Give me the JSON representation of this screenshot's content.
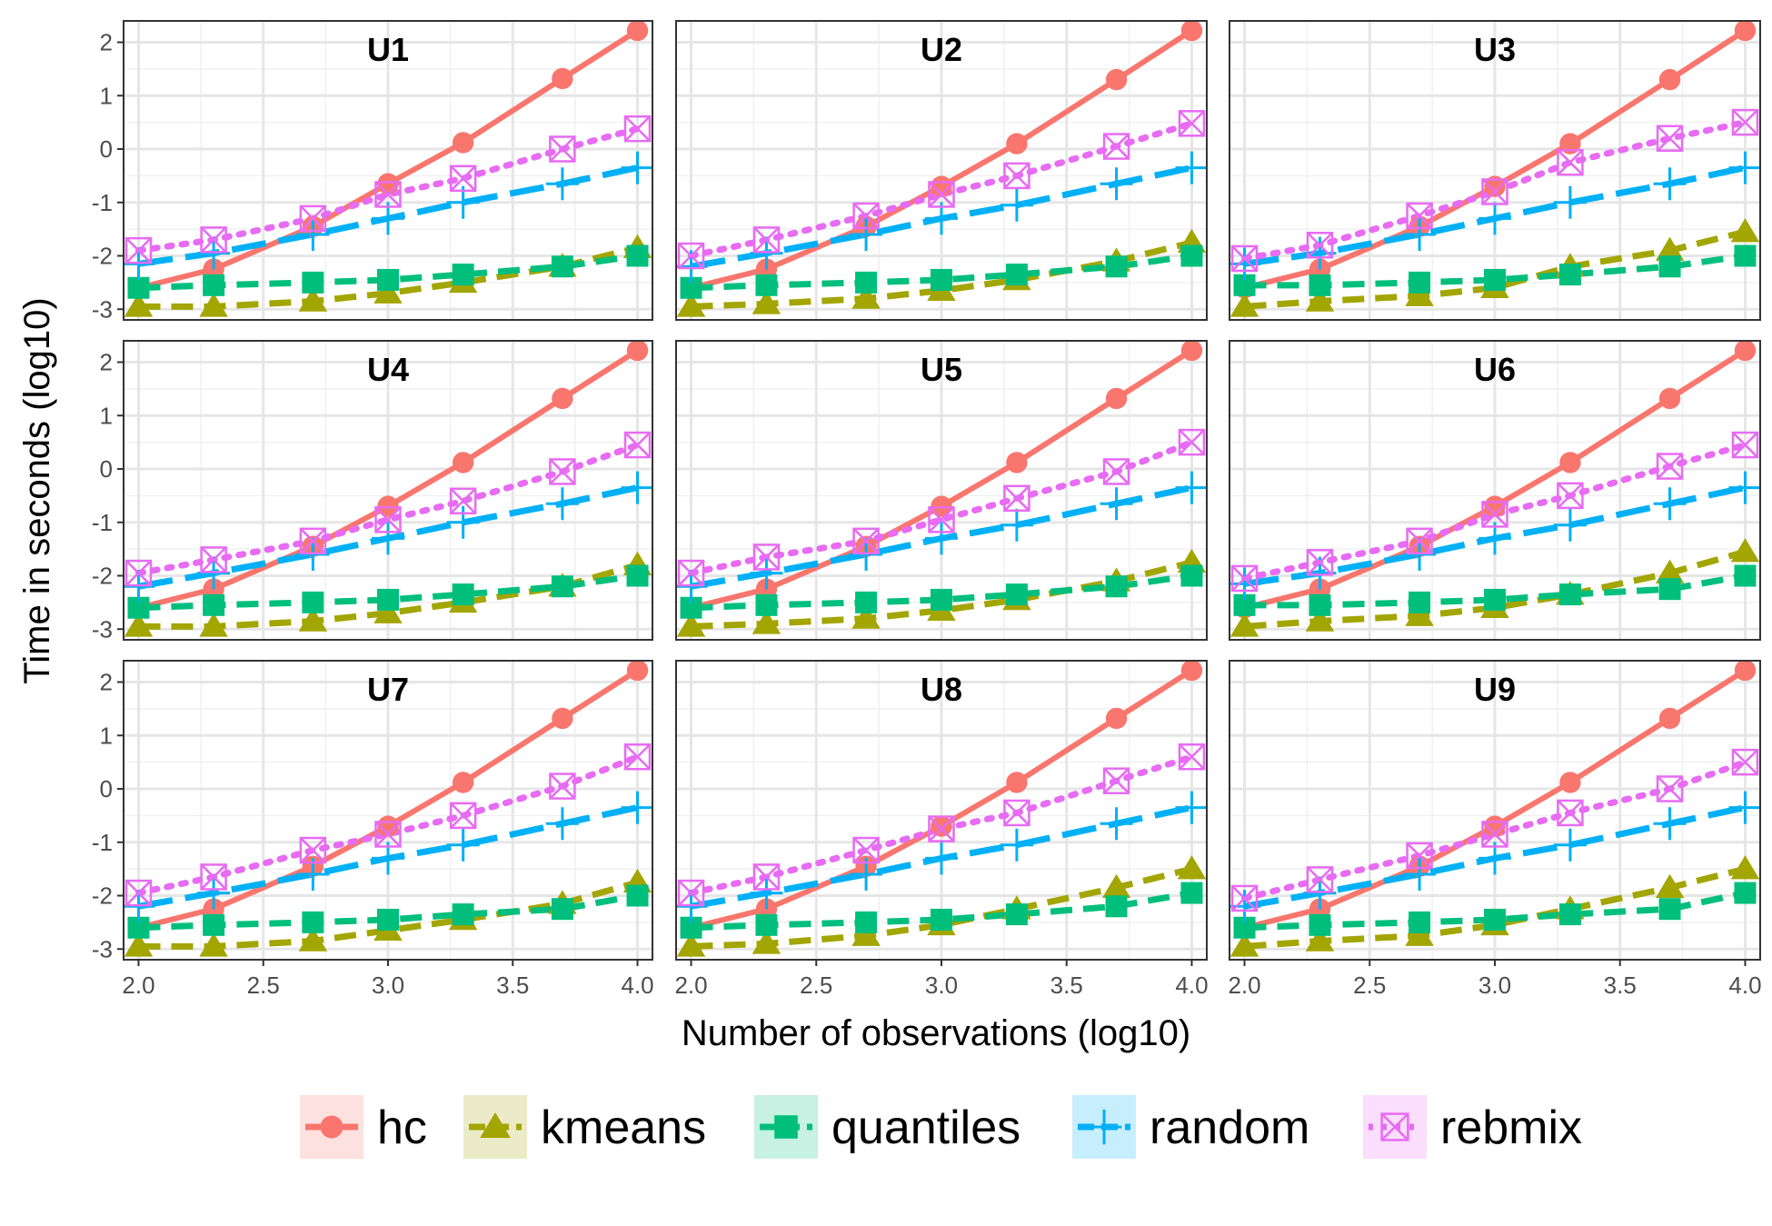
{
  "chart_data": {
    "type": "line",
    "xlabel": "Number of observations (log10)",
    "ylabel": "Time in seconds (log10)",
    "xlim": [
      1.94,
      4.06
    ],
    "ylim": [
      -3.2,
      2.4
    ],
    "x_ticks": [
      2.0,
      2.5,
      3.0,
      3.5,
      4.0
    ],
    "x_tick_labels": [
      "2.0",
      "2.5",
      "3.0",
      "3.5",
      "4.0"
    ],
    "y_ticks": [
      -3,
      -2,
      -1,
      0,
      1,
      2
    ],
    "y_tick_labels": [
      "-3",
      "-2",
      "-1",
      "0",
      "1",
      "2"
    ],
    "grid": true,
    "legend_position": "bottom",
    "x": [
      2.0,
      2.301,
      2.699,
      3.0,
      3.301,
      3.699,
      4.0
    ],
    "series_styles": [
      {
        "name": "hc",
        "color": "#F8766D",
        "dash": "solid",
        "marker": "circle"
      },
      {
        "name": "kmeans",
        "color": "#A3A500",
        "dash": "dashed",
        "marker": "triangle"
      },
      {
        "name": "quantiles",
        "color": "#00BF7D",
        "dash": "dashed",
        "marker": "square"
      },
      {
        "name": "random",
        "color": "#00B0F6",
        "dash": "longdash",
        "marker": "plus"
      },
      {
        "name": "rebmix",
        "color": "#E76BF3",
        "dash": "dotted",
        "marker": "boxx"
      }
    ],
    "panels": [
      {
        "label": "U1",
        "series": [
          {
            "name": "hc",
            "values": [
              -2.6,
              -2.25,
              -1.45,
              -0.65,
              0.12,
              1.32,
              2.22
            ]
          },
          {
            "name": "kmeans",
            "values": [
              -2.95,
              -2.95,
              -2.85,
              -2.7,
              -2.5,
              -2.2,
              -1.85
            ]
          },
          {
            "name": "quantiles",
            "values": [
              -2.6,
              -2.55,
              -2.5,
              -2.45,
              -2.35,
              -2.2,
              -2.0
            ]
          },
          {
            "name": "random",
            "values": [
              -2.15,
              -1.95,
              -1.6,
              -1.3,
              -1.0,
              -0.65,
              -0.35
            ]
          },
          {
            "name": "rebmix",
            "values": [
              -1.9,
              -1.7,
              -1.3,
              -0.85,
              -0.55,
              0.0,
              0.38
            ]
          }
        ]
      },
      {
        "label": "U2",
        "series": [
          {
            "name": "hc",
            "values": [
              -2.6,
              -2.25,
              -1.45,
              -0.7,
              0.1,
              1.3,
              2.22
            ]
          },
          {
            "name": "kmeans",
            "values": [
              -2.95,
              -2.9,
              -2.8,
              -2.65,
              -2.45,
              -2.1,
              -1.75
            ]
          },
          {
            "name": "quantiles",
            "values": [
              -2.6,
              -2.55,
              -2.5,
              -2.45,
              -2.35,
              -2.2,
              -2.0
            ]
          },
          {
            "name": "random",
            "values": [
              -2.2,
              -1.95,
              -1.6,
              -1.3,
              -1.05,
              -0.65,
              -0.35
            ]
          },
          {
            "name": "rebmix",
            "values": [
              -2.0,
              -1.7,
              -1.25,
              -0.85,
              -0.5,
              0.05,
              0.48
            ]
          }
        ]
      },
      {
        "label": "U3",
        "series": [
          {
            "name": "hc",
            "values": [
              -2.6,
              -2.25,
              -1.45,
              -0.7,
              0.1,
              1.3,
              2.22
            ]
          },
          {
            "name": "kmeans",
            "values": [
              -2.95,
              -2.85,
              -2.75,
              -2.6,
              -2.2,
              -1.9,
              -1.55
            ]
          },
          {
            "name": "quantiles",
            "values": [
              -2.55,
              -2.55,
              -2.5,
              -2.45,
              -2.35,
              -2.2,
              -2.0
            ]
          },
          {
            "name": "random",
            "values": [
              -2.15,
              -1.95,
              -1.6,
              -1.3,
              -1.0,
              -0.65,
              -0.35
            ]
          },
          {
            "name": "rebmix",
            "values": [
              -2.05,
              -1.8,
              -1.25,
              -0.8,
              -0.25,
              0.2,
              0.5
            ]
          }
        ]
      },
      {
        "label": "U4",
        "series": [
          {
            "name": "hc",
            "values": [
              -2.6,
              -2.25,
              -1.45,
              -0.7,
              0.12,
              1.32,
              2.22
            ]
          },
          {
            "name": "kmeans",
            "values": [
              -2.95,
              -2.95,
              -2.85,
              -2.7,
              -2.5,
              -2.2,
              -1.8
            ]
          },
          {
            "name": "quantiles",
            "values": [
              -2.6,
              -2.55,
              -2.5,
              -2.45,
              -2.35,
              -2.2,
              -2.0
            ]
          },
          {
            "name": "random",
            "values": [
              -2.2,
              -1.95,
              -1.6,
              -1.3,
              -1.0,
              -0.65,
              -0.35
            ]
          },
          {
            "name": "rebmix",
            "values": [
              -1.95,
              -1.7,
              -1.35,
              -0.95,
              -0.6,
              -0.05,
              0.45
            ]
          }
        ]
      },
      {
        "label": "U5",
        "series": [
          {
            "name": "hc",
            "values": [
              -2.6,
              -2.25,
              -1.45,
              -0.7,
              0.12,
              1.32,
              2.22
            ]
          },
          {
            "name": "kmeans",
            "values": [
              -2.95,
              -2.9,
              -2.8,
              -2.65,
              -2.45,
              -2.1,
              -1.75
            ]
          },
          {
            "name": "quantiles",
            "values": [
              -2.6,
              -2.55,
              -2.5,
              -2.45,
              -2.35,
              -2.2,
              -2.0
            ]
          },
          {
            "name": "random",
            "values": [
              -2.2,
              -1.95,
              -1.6,
              -1.3,
              -1.05,
              -0.65,
              -0.35
            ]
          },
          {
            "name": "rebmix",
            "values": [
              -1.95,
              -1.65,
              -1.35,
              -0.95,
              -0.55,
              -0.05,
              0.5
            ]
          }
        ]
      },
      {
        "label": "U6",
        "series": [
          {
            "name": "hc",
            "values": [
              -2.6,
              -2.25,
              -1.45,
              -0.7,
              0.12,
              1.32,
              2.22
            ]
          },
          {
            "name": "kmeans",
            "values": [
              -2.95,
              -2.85,
              -2.75,
              -2.6,
              -2.35,
              -1.95,
              -1.55
            ]
          },
          {
            "name": "quantiles",
            "values": [
              -2.55,
              -2.55,
              -2.5,
              -2.45,
              -2.35,
              -2.25,
              -2.0
            ]
          },
          {
            "name": "random",
            "values": [
              -2.15,
              -1.95,
              -1.6,
              -1.3,
              -1.05,
              -0.65,
              -0.35
            ]
          },
          {
            "name": "rebmix",
            "values": [
              -2.05,
              -1.75,
              -1.35,
              -0.85,
              -0.5,
              0.05,
              0.45
            ]
          }
        ]
      },
      {
        "label": "U7",
        "series": [
          {
            "name": "hc",
            "values": [
              -2.6,
              -2.25,
              -1.45,
              -0.7,
              0.12,
              1.32,
              2.22
            ]
          },
          {
            "name": "kmeans",
            "values": [
              -2.95,
              -2.95,
              -2.85,
              -2.65,
              -2.45,
              -2.15,
              -1.75
            ]
          },
          {
            "name": "quantiles",
            "values": [
              -2.6,
              -2.55,
              -2.5,
              -2.45,
              -2.35,
              -2.25,
              -2.0
            ]
          },
          {
            "name": "random",
            "values": [
              -2.2,
              -1.95,
              -1.6,
              -1.3,
              -1.05,
              -0.65,
              -0.35
            ]
          },
          {
            "name": "rebmix",
            "values": [
              -1.95,
              -1.65,
              -1.15,
              -0.85,
              -0.5,
              0.05,
              0.6
            ]
          }
        ]
      },
      {
        "label": "U8",
        "series": [
          {
            "name": "hc",
            "values": [
              -2.6,
              -2.25,
              -1.45,
              -0.7,
              0.12,
              1.32,
              2.22
            ]
          },
          {
            "name": "kmeans",
            "values": [
              -2.95,
              -2.9,
              -2.75,
              -2.55,
              -2.25,
              -1.85,
              -1.5
            ]
          },
          {
            "name": "quantiles",
            "values": [
              -2.6,
              -2.55,
              -2.5,
              -2.45,
              -2.35,
              -2.2,
              -1.95
            ]
          },
          {
            "name": "random",
            "values": [
              -2.2,
              -1.95,
              -1.6,
              -1.3,
              -1.05,
              -0.65,
              -0.35
            ]
          },
          {
            "name": "rebmix",
            "values": [
              -1.95,
              -1.65,
              -1.15,
              -0.75,
              -0.45,
              0.15,
              0.6
            ]
          }
        ]
      },
      {
        "label": "U9",
        "series": [
          {
            "name": "hc",
            "values": [
              -2.6,
              -2.25,
              -1.45,
              -0.7,
              0.12,
              1.32,
              2.22
            ]
          },
          {
            "name": "kmeans",
            "values": [
              -2.95,
              -2.85,
              -2.75,
              -2.55,
              -2.25,
              -1.85,
              -1.5
            ]
          },
          {
            "name": "quantiles",
            "values": [
              -2.6,
              -2.55,
              -2.5,
              -2.45,
              -2.35,
              -2.25,
              -1.95
            ]
          },
          {
            "name": "random",
            "values": [
              -2.2,
              -1.95,
              -1.6,
              -1.3,
              -1.05,
              -0.65,
              -0.35
            ]
          },
          {
            "name": "rebmix",
            "values": [
              -2.05,
              -1.7,
              -1.25,
              -0.85,
              -0.45,
              0.0,
              0.5
            ]
          }
        ]
      }
    ]
  }
}
